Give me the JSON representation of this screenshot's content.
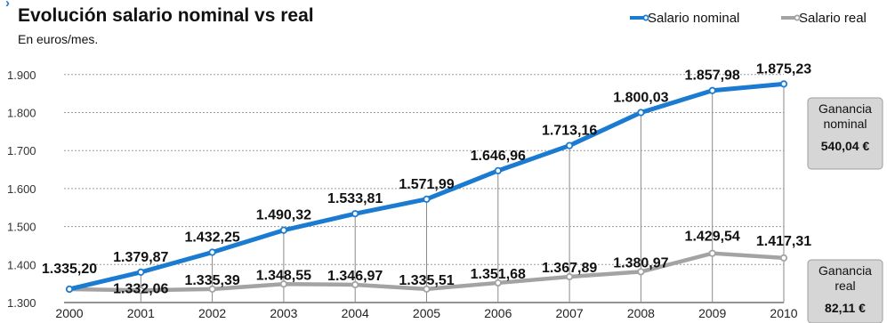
{
  "chart_data": {
    "type": "line",
    "title": "Evolución salario nominal vs real",
    "subtitle": "En euros/mes.",
    "categories": [
      "2000",
      "2001",
      "2002",
      "2003",
      "2004",
      "2005",
      "2006",
      "2007",
      "2008",
      "2009",
      "2010"
    ],
    "ylim": [
      1300,
      1900
    ],
    "yticks": [
      {
        "value": 1300,
        "label": "1.300"
      },
      {
        "value": 1400,
        "label": "1.400"
      },
      {
        "value": 1500,
        "label": "1.500"
      },
      {
        "value": 1600,
        "label": "1.600"
      },
      {
        "value": 1700,
        "label": "1.700"
      },
      {
        "value": 1800,
        "label": "1.800"
      },
      {
        "value": 1900,
        "label": "1.900"
      }
    ],
    "grid": true,
    "legend": "top-right",
    "series": [
      {
        "name": "Salario nominal",
        "color": "#1a7bd1",
        "values": [
          1335.2,
          1379.87,
          1432.25,
          1490.32,
          1533.81,
          1571.99,
          1646.96,
          1713.16,
          1800.03,
          1857.98,
          1875.23
        ],
        "labels": [
          "1.335,20",
          "1.379,87",
          "1.432,25",
          "1.490,32",
          "1.533,81",
          "1.571,99",
          "1.646,96",
          "1.713,16",
          "1.800,03",
          "1.857,98",
          "1.875,23"
        ]
      },
      {
        "name": "Salario real",
        "color": "#a3a3a3",
        "values": [
          1335.2,
          1332.06,
          1335.39,
          1348.55,
          1346.97,
          1335.51,
          1351.68,
          1367.89,
          1380.97,
          1429.54,
          1417.31
        ],
        "labels": [
          "",
          "1.332,06",
          "1.335,39",
          "1.348,55",
          "1.346,97",
          "1.335,51",
          "1.351,68",
          "1.367,89",
          "1.380,97",
          "1.429,54",
          "1.417,31"
        ]
      }
    ],
    "annotations": [
      {
        "series": 0,
        "lines": [
          "Ganancia",
          "nominal"
        ],
        "value": "540,04 €"
      },
      {
        "series": 1,
        "lines": [
          "Ganancia",
          "real"
        ],
        "value": "82,11 €"
      }
    ]
  }
}
